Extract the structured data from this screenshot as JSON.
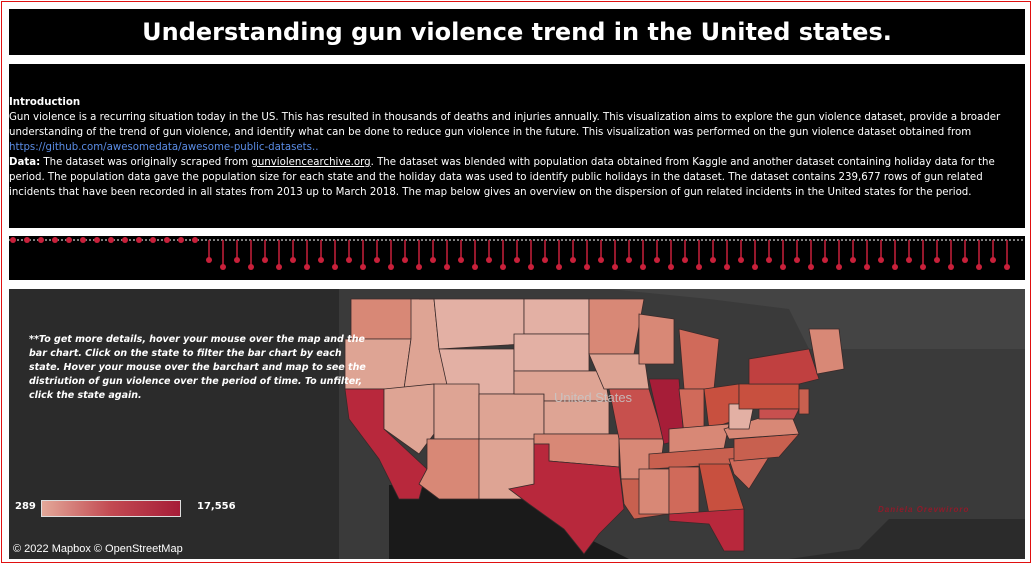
{
  "title": "Understanding gun violence trend in the United states.",
  "intro": {
    "heading": "Introduction",
    "paragraph1": "Gun violence is a recurring situation today in the US. This has resulted in thousands of deaths and injuries annually. This visualization aims to explore the gun violence dataset, provide a broader understanding of the trend of gun violence, and identify what can be done to reduce gun violence in the future.  This visualization was performed on the gun violence dataset obtained from",
    "link": "https://github.com/awesomedata/awesome-public-datasets..",
    "data_label": "Data:",
    "data_text1": " The dataset was originally scraped from ",
    "data_link": "gunviolencearchive.org",
    "data_text2": ". The dataset was blended with population data obtained from Kaggle and another dataset containing holiday data for the period. The population data gave the population size for each state and the holiday data was used to identify public holidays in the dataset. The dataset contains 239,677 rows of gun related incidents that have been recorded in all states from 2013 up to March 2018. The map below gives an overview on the dispersion of gun related incidents in the United states for the period."
  },
  "map": {
    "note": "**To get more details, hover your mouse over the map and the bar chart. Click on the state to filter the bar chart by each state. Hover your mouse over the barchart and map to see the distriution of gun violence over the period of time. To unfilter, click the state again.",
    "country_label": "United States",
    "legend_min": "289",
    "legend_max": "17,556",
    "attribution": "© 2022 Mapbox  © OpenStreetMap",
    "watermark": "Daniela Orevwiroro",
    "color_low": "#e3a899",
    "color_high": "#a61d38",
    "ocean_color": "#2b2b2b",
    "land_color": "#3a3a3a"
  },
  "colors": {
    "accent": "#c8203a",
    "frame": "#e01010",
    "panel": "#000000"
  }
}
